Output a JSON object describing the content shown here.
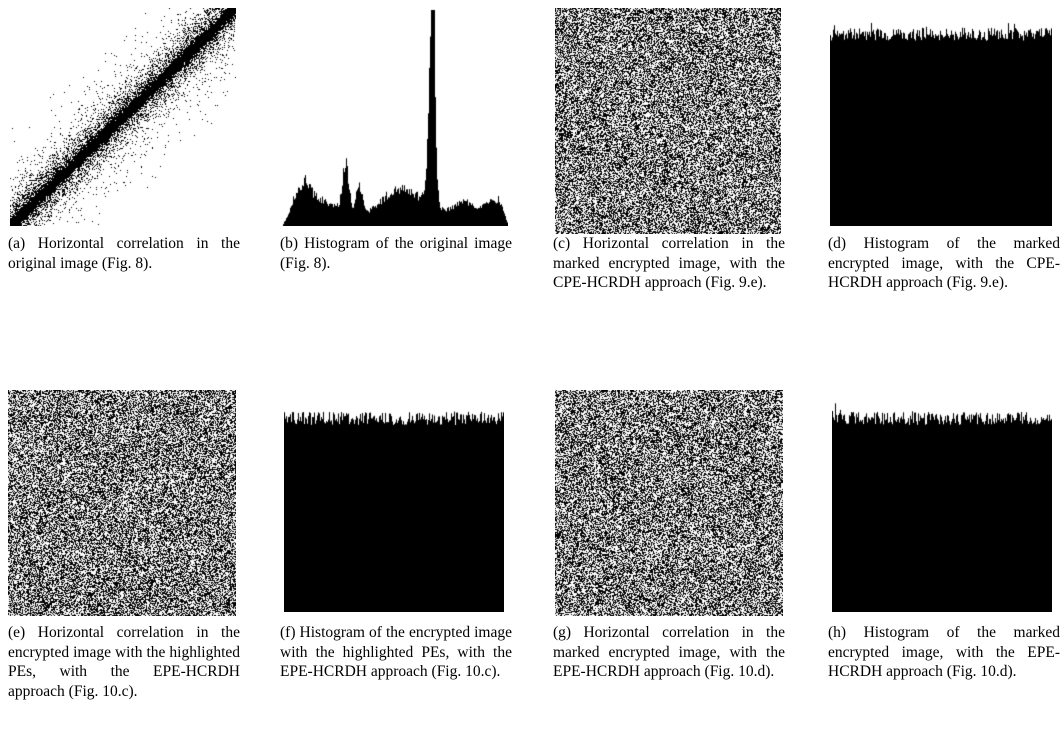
{
  "figure": {
    "panels": [
      {
        "id": "a",
        "kind": "correlation-original",
        "caption": "(a) Horizontal correlation in the original image (Fig. 8)."
      },
      {
        "id": "b",
        "kind": "histogram-original",
        "caption": "(b) Histogram of the original image (Fig. 8)."
      },
      {
        "id": "c",
        "kind": "correlation-noise",
        "caption": "(c) Horizontal correlation in the marked encrypted image, with the CPE-HCRDH approach (Fig. 9.e)."
      },
      {
        "id": "d",
        "kind": "histogram-flat",
        "caption": "(d) Histogram of the marked encrypted image, with the CPE-HCRDH approach (Fig. 9.e)."
      },
      {
        "id": "e",
        "kind": "correlation-noise",
        "caption": "(e) Horizontal correlation in the encrypted image with the highlighted PEs, with the EPE-HCRDH approach (Fig. 10.c)."
      },
      {
        "id": "f",
        "kind": "histogram-flat",
        "caption": "(f) Histogram of the encrypted image with the highlighted PEs, with the EPE-HCRDH approach (Fig. 10.c)."
      },
      {
        "id": "g",
        "kind": "correlation-noise",
        "caption": "(g) Horizontal correlation in the marked encrypted image, with the EPE-HCRDH approach (Fig. 10.d)."
      },
      {
        "id": "h",
        "kind": "histogram-flat",
        "caption": "(h) Histogram of the marked encrypted image, with the EPE-HCRDH approach (Fig. 10.d)."
      }
    ]
  }
}
